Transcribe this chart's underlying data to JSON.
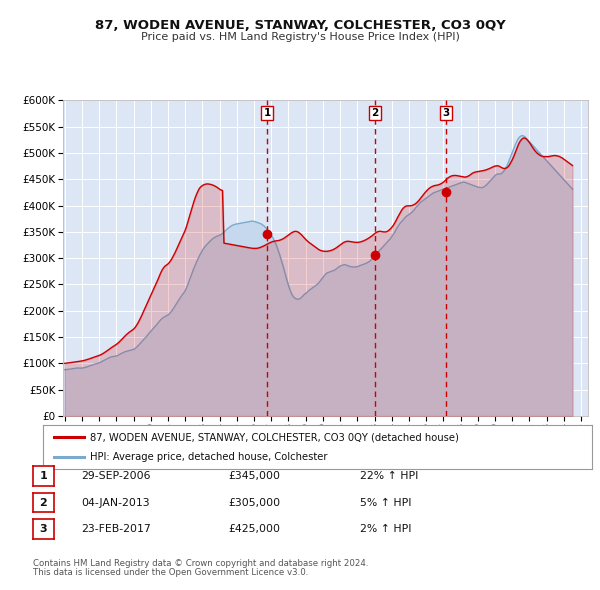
{
  "title": "87, WODEN AVENUE, STANWAY, COLCHESTER, CO3 0QY",
  "subtitle": "Price paid vs. HM Land Registry's House Price Index (HPI)",
  "ylim": [
    0,
    600000
  ],
  "yticks": [
    0,
    50000,
    100000,
    150000,
    200000,
    250000,
    300000,
    350000,
    400000,
    450000,
    500000,
    550000,
    600000
  ],
  "xlim_start": 1994.9,
  "xlim_end": 2025.4,
  "background_color": "#ffffff",
  "plot_bg_color": "#dce6f5",
  "grid_color": "#ffffff",
  "sale_color": "#cc0000",
  "hpi_color": "#7aabcf",
  "hpi_fill_color": "#c5d8ee",
  "sale_fill_color": "#cc0000",
  "sale_label": "87, WODEN AVENUE, STANWAY, COLCHESTER, CO3 0QY (detached house)",
  "hpi_label": "HPI: Average price, detached house, Colchester",
  "transactions": [
    {
      "num": 1,
      "date": 2006.75,
      "price": 345000,
      "label": "29-SEP-2006",
      "price_label": "£345,000",
      "pct": "22%",
      "dir": "↑"
    },
    {
      "num": 2,
      "date": 2013.02,
      "price": 305000,
      "label": "04-JAN-2013",
      "price_label": "£305,000",
      "pct": "5%",
      "dir": "↑"
    },
    {
      "num": 3,
      "date": 2017.15,
      "price": 425000,
      "label": "23-FEB-2017",
      "price_label": "£425,000",
      "pct": "2%",
      "dir": "↑"
    }
  ],
  "footnote1": "Contains HM Land Registry data © Crown copyright and database right 2024.",
  "footnote2": "This data is licensed under the Open Government Licence v3.0.",
  "hpi_data_x": [
    1995.0,
    1995.083,
    1995.167,
    1995.25,
    1995.333,
    1995.417,
    1995.5,
    1995.583,
    1995.667,
    1995.75,
    1995.833,
    1995.917,
    1996.0,
    1996.083,
    1996.167,
    1996.25,
    1996.333,
    1996.417,
    1996.5,
    1996.583,
    1996.667,
    1996.75,
    1996.833,
    1996.917,
    1997.0,
    1997.083,
    1997.167,
    1997.25,
    1997.333,
    1997.417,
    1997.5,
    1997.583,
    1997.667,
    1997.75,
    1997.833,
    1997.917,
    1998.0,
    1998.083,
    1998.167,
    1998.25,
    1998.333,
    1998.417,
    1998.5,
    1998.583,
    1998.667,
    1998.75,
    1998.833,
    1998.917,
    1999.0,
    1999.083,
    1999.167,
    1999.25,
    1999.333,
    1999.417,
    1999.5,
    1999.583,
    1999.667,
    1999.75,
    1999.833,
    1999.917,
    2000.0,
    2000.083,
    2000.167,
    2000.25,
    2000.333,
    2000.417,
    2000.5,
    2000.583,
    2000.667,
    2000.75,
    2000.833,
    2000.917,
    2001.0,
    2001.083,
    2001.167,
    2001.25,
    2001.333,
    2001.417,
    2001.5,
    2001.583,
    2001.667,
    2001.75,
    2001.833,
    2001.917,
    2002.0,
    2002.083,
    2002.167,
    2002.25,
    2002.333,
    2002.417,
    2002.5,
    2002.583,
    2002.667,
    2002.75,
    2002.833,
    2002.917,
    2003.0,
    2003.083,
    2003.167,
    2003.25,
    2003.333,
    2003.417,
    2003.5,
    2003.583,
    2003.667,
    2003.75,
    2003.833,
    2003.917,
    2004.0,
    2004.083,
    2004.167,
    2004.25,
    2004.333,
    2004.417,
    2004.5,
    2004.583,
    2004.667,
    2004.75,
    2004.833,
    2004.917,
    2005.0,
    2005.083,
    2005.167,
    2005.25,
    2005.333,
    2005.417,
    2005.5,
    2005.583,
    2005.667,
    2005.75,
    2005.833,
    2005.917,
    2006.0,
    2006.083,
    2006.167,
    2006.25,
    2006.333,
    2006.417,
    2006.5,
    2006.583,
    2006.667,
    2006.75,
    2006.833,
    2006.917,
    2007.0,
    2007.083,
    2007.167,
    2007.25,
    2007.333,
    2007.417,
    2007.5,
    2007.583,
    2007.667,
    2007.75,
    2007.833,
    2007.917,
    2008.0,
    2008.083,
    2008.167,
    2008.25,
    2008.333,
    2008.417,
    2008.5,
    2008.583,
    2008.667,
    2008.75,
    2008.833,
    2008.917,
    2009.0,
    2009.083,
    2009.167,
    2009.25,
    2009.333,
    2009.417,
    2009.5,
    2009.583,
    2009.667,
    2009.75,
    2009.833,
    2009.917,
    2010.0,
    2010.083,
    2010.167,
    2010.25,
    2010.333,
    2010.417,
    2010.5,
    2010.583,
    2010.667,
    2010.75,
    2010.833,
    2010.917,
    2011.0,
    2011.083,
    2011.167,
    2011.25,
    2011.333,
    2011.417,
    2011.5,
    2011.583,
    2011.667,
    2011.75,
    2011.833,
    2011.917,
    2012.0,
    2012.083,
    2012.167,
    2012.25,
    2012.333,
    2012.417,
    2012.5,
    2012.583,
    2012.667,
    2012.75,
    2012.833,
    2012.917,
    2013.0,
    2013.083,
    2013.167,
    2013.25,
    2013.333,
    2013.417,
    2013.5,
    2013.583,
    2013.667,
    2013.75,
    2013.833,
    2013.917,
    2014.0,
    2014.083,
    2014.167,
    2014.25,
    2014.333,
    2014.417,
    2014.5,
    2014.583,
    2014.667,
    2014.75,
    2014.833,
    2014.917,
    2015.0,
    2015.083,
    2015.167,
    2015.25,
    2015.333,
    2015.417,
    2015.5,
    2015.583,
    2015.667,
    2015.75,
    2015.833,
    2015.917,
    2016.0,
    2016.083,
    2016.167,
    2016.25,
    2016.333,
    2016.417,
    2016.5,
    2016.583,
    2016.667,
    2016.75,
    2016.833,
    2016.917,
    2017.0,
    2017.083,
    2017.167,
    2017.25,
    2017.333,
    2017.417,
    2017.5,
    2017.583,
    2017.667,
    2017.75,
    2017.833,
    2017.917,
    2018.0,
    2018.083,
    2018.167,
    2018.25,
    2018.333,
    2018.417,
    2018.5,
    2018.583,
    2018.667,
    2018.75,
    2018.833,
    2018.917,
    2019.0,
    2019.083,
    2019.167,
    2019.25,
    2019.333,
    2019.417,
    2019.5,
    2019.583,
    2019.667,
    2019.75,
    2019.833,
    2019.917,
    2020.0,
    2020.083,
    2020.167,
    2020.25,
    2020.333,
    2020.417,
    2020.5,
    2020.583,
    2020.667,
    2020.75,
    2020.833,
    2020.917,
    2021.0,
    2021.083,
    2021.167,
    2021.25,
    2021.333,
    2021.417,
    2021.5,
    2021.583,
    2021.667,
    2021.75,
    2021.833,
    2021.917,
    2022.0,
    2022.083,
    2022.167,
    2022.25,
    2022.333,
    2022.417,
    2022.5,
    2022.583,
    2022.667,
    2022.75,
    2022.833,
    2022.917,
    2023.0,
    2023.083,
    2023.167,
    2023.25,
    2023.333,
    2023.417,
    2023.5,
    2023.583,
    2023.667,
    2023.75,
    2023.833,
    2023.917,
    2024.0,
    2024.083,
    2024.167,
    2024.25,
    2024.333,
    2024.417,
    2024.5
  ],
  "hpi_data_y": [
    88000,
    88200,
    88500,
    88800,
    89200,
    89600,
    90100,
    90500,
    91000,
    91200,
    91000,
    90800,
    91000,
    91400,
    92000,
    92800,
    93700,
    94700,
    95700,
    96700,
    97600,
    98500,
    99200,
    100000,
    101000,
    102200,
    103500,
    105000,
    106500,
    108000,
    109500,
    110800,
    111800,
    112500,
    113000,
    113500,
    114000,
    115000,
    116500,
    118000,
    119500,
    121000,
    122000,
    122800,
    123500,
    124200,
    125000,
    125800,
    126500,
    128000,
    130500,
    133000,
    136000,
    139000,
    142000,
    145000,
    148000,
    151000,
    154500,
    158000,
    161000,
    164000,
    167000,
    170000,
    173000,
    176500,
    180000,
    183000,
    185500,
    187500,
    189000,
    190500,
    192000,
    194500,
    197500,
    201000,
    205000,
    209500,
    214000,
    218500,
    222500,
    226500,
    230500,
    234000,
    238000,
    244000,
    251000,
    258500,
    266000,
    273500,
    280500,
    287000,
    293000,
    299000,
    305000,
    310000,
    315000,
    319000,
    322500,
    325500,
    328500,
    331500,
    334000,
    336500,
    338500,
    340000,
    341500,
    342500,
    343500,
    345000,
    347000,
    349500,
    352000,
    354500,
    357000,
    359000,
    361000,
    362500,
    363500,
    364500,
    365000,
    365500,
    366000,
    366500,
    367000,
    367500,
    368000,
    368500,
    369000,
    369500,
    370000,
    370200,
    370000,
    369000,
    368000,
    367000,
    366000,
    365000,
    363000,
    361000,
    358000,
    355000,
    351000,
    347000,
    343000,
    339000,
    334000,
    328000,
    321000,
    313000,
    305000,
    296000,
    287000,
    277000,
    267000,
    257000,
    248000,
    240000,
    233000,
    228000,
    225000,
    223000,
    222000,
    222000,
    223000,
    225000,
    228000,
    231000,
    233000,
    235000,
    238000,
    240000,
    242000,
    244000,
    246000,
    248000,
    250000,
    253000,
    256000,
    260000,
    263000,
    267000,
    270000,
    272000,
    273000,
    274000,
    275000,
    276000,
    277000,
    279000,
    281000,
    283000,
    285000,
    286000,
    287000,
    287500,
    287000,
    286000,
    285000,
    284000,
    283500,
    283000,
    283000,
    283500,
    284000,
    285000,
    286000,
    287000,
    288000,
    289000,
    290000,
    291500,
    293000,
    295000,
    298000,
    301000,
    304000,
    307000,
    310000,
    313000,
    316000,
    319000,
    322000,
    325000,
    328000,
    331000,
    334000,
    337000,
    341000,
    345000,
    349000,
    354000,
    359000,
    363000,
    367000,
    370000,
    373000,
    376000,
    379000,
    381000,
    383000,
    385000,
    387000,
    390000,
    393000,
    397000,
    400000,
    403000,
    406000,
    408000,
    410000,
    412000,
    414000,
    416000,
    418000,
    420000,
    422000,
    424000,
    425000,
    426000,
    427000,
    428000,
    429000,
    430000,
    431000,
    432000,
    433000,
    434000,
    435000,
    436000,
    437000,
    438000,
    439000,
    440000,
    441000,
    442000,
    443000,
    444000,
    444500,
    444000,
    443000,
    442000,
    441000,
    440000,
    439000,
    438000,
    437000,
    436000,
    435000,
    434500,
    434000,
    434000,
    435000,
    437000,
    439000,
    442000,
    445000,
    448000,
    451000,
    454000,
    457000,
    459000,
    460000,
    460000,
    460000,
    462000,
    465000,
    469000,
    474000,
    480000,
    487000,
    494000,
    501000,
    508000,
    515000,
    521000,
    526000,
    530000,
    532000,
    533000,
    532000,
    530000,
    527000,
    524000,
    521000,
    518000,
    515000,
    512000,
    509000,
    506000,
    503000,
    500000,
    497000,
    494000,
    491000,
    488000,
    485000,
    482000,
    479000,
    476000,
    473000,
    470000,
    467000,
    464000,
    461000,
    458000,
    455000,
    452000,
    449000,
    446000,
    443000,
    440000,
    437000,
    434000,
    431000
  ],
  "sale_data_x": [
    1995.0,
    1995.083,
    1995.167,
    1995.25,
    1995.333,
    1995.417,
    1995.5,
    1995.583,
    1995.667,
    1995.75,
    1995.833,
    1995.917,
    1996.0,
    1996.083,
    1996.167,
    1996.25,
    1996.333,
    1996.417,
    1996.5,
    1996.583,
    1996.667,
    1996.75,
    1996.833,
    1996.917,
    1997.0,
    1997.083,
    1997.167,
    1997.25,
    1997.333,
    1997.417,
    1997.5,
    1997.583,
    1997.667,
    1997.75,
    1997.833,
    1997.917,
    1998.0,
    1998.083,
    1998.167,
    1998.25,
    1998.333,
    1998.417,
    1998.5,
    1998.583,
    1998.667,
    1998.75,
    1998.833,
    1998.917,
    1999.0,
    1999.083,
    1999.167,
    1999.25,
    1999.333,
    1999.417,
    1999.5,
    1999.583,
    1999.667,
    1999.75,
    1999.833,
    1999.917,
    2000.0,
    2000.083,
    2000.167,
    2000.25,
    2000.333,
    2000.417,
    2000.5,
    2000.583,
    2000.667,
    2000.75,
    2000.833,
    2000.917,
    2001.0,
    2001.083,
    2001.167,
    2001.25,
    2001.333,
    2001.417,
    2001.5,
    2001.583,
    2001.667,
    2001.75,
    2001.833,
    2001.917,
    2002.0,
    2002.083,
    2002.167,
    2002.25,
    2002.333,
    2002.417,
    2002.5,
    2002.583,
    2002.667,
    2002.75,
    2002.833,
    2002.917,
    2003.0,
    2003.083,
    2003.167,
    2003.25,
    2003.333,
    2003.417,
    2003.5,
    2003.583,
    2003.667,
    2003.75,
    2003.833,
    2003.917,
    2004.0,
    2004.083,
    2004.167,
    2004.25,
    2004.333,
    2004.417,
    2004.5,
    2004.583,
    2004.667,
    2004.75,
    2004.833,
    2004.917,
    2005.0,
    2005.083,
    2005.167,
    2005.25,
    2005.333,
    2005.417,
    2005.5,
    2005.583,
    2005.667,
    2005.75,
    2005.833,
    2005.917,
    2006.0,
    2006.083,
    2006.167,
    2006.25,
    2006.333,
    2006.417,
    2006.5,
    2006.583,
    2006.667,
    2006.75,
    2006.833,
    2006.917,
    2007.0,
    2007.083,
    2007.167,
    2007.25,
    2007.333,
    2007.417,
    2007.5,
    2007.583,
    2007.667,
    2007.75,
    2007.833,
    2007.917,
    2008.0,
    2008.083,
    2008.167,
    2008.25,
    2008.333,
    2008.417,
    2008.5,
    2008.583,
    2008.667,
    2008.75,
    2008.833,
    2008.917,
    2009.0,
    2009.083,
    2009.167,
    2009.25,
    2009.333,
    2009.417,
    2009.5,
    2009.583,
    2009.667,
    2009.75,
    2009.833,
    2009.917,
    2010.0,
    2010.083,
    2010.167,
    2010.25,
    2010.333,
    2010.417,
    2010.5,
    2010.583,
    2010.667,
    2010.75,
    2010.833,
    2010.917,
    2011.0,
    2011.083,
    2011.167,
    2011.25,
    2011.333,
    2011.417,
    2011.5,
    2011.583,
    2011.667,
    2011.75,
    2011.833,
    2011.917,
    2012.0,
    2012.083,
    2012.167,
    2012.25,
    2012.333,
    2012.417,
    2012.5,
    2012.583,
    2012.667,
    2012.75,
    2012.833,
    2012.917,
    2013.0,
    2013.083,
    2013.167,
    2013.25,
    2013.333,
    2013.417,
    2013.5,
    2013.583,
    2013.667,
    2013.75,
    2013.833,
    2013.917,
    2014.0,
    2014.083,
    2014.167,
    2014.25,
    2014.333,
    2014.417,
    2014.5,
    2014.583,
    2014.667,
    2014.75,
    2014.833,
    2014.917,
    2015.0,
    2015.083,
    2015.167,
    2015.25,
    2015.333,
    2015.417,
    2015.5,
    2015.583,
    2015.667,
    2015.75,
    2015.833,
    2015.917,
    2016.0,
    2016.083,
    2016.167,
    2016.25,
    2016.333,
    2016.417,
    2016.5,
    2016.583,
    2016.667,
    2016.75,
    2016.833,
    2016.917,
    2017.0,
    2017.083,
    2017.167,
    2017.25,
    2017.333,
    2017.417,
    2017.5,
    2017.583,
    2017.667,
    2017.75,
    2017.833,
    2017.917,
    2018.0,
    2018.083,
    2018.167,
    2018.25,
    2018.333,
    2018.417,
    2018.5,
    2018.583,
    2018.667,
    2018.75,
    2018.833,
    2018.917,
    2019.0,
    2019.083,
    2019.167,
    2019.25,
    2019.333,
    2019.417,
    2019.5,
    2019.583,
    2019.667,
    2019.75,
    2019.833,
    2019.917,
    2020.0,
    2020.083,
    2020.167,
    2020.25,
    2020.333,
    2020.417,
    2020.5,
    2020.583,
    2020.667,
    2020.75,
    2020.833,
    2020.917,
    2021.0,
    2021.083,
    2021.167,
    2021.25,
    2021.333,
    2021.417,
    2021.5,
    2021.583,
    2021.667,
    2021.75,
    2021.833,
    2021.917,
    2022.0,
    2022.083,
    2022.167,
    2022.25,
    2022.333,
    2022.417,
    2022.5,
    2022.583,
    2022.667,
    2022.75,
    2022.833,
    2022.917,
    2023.0,
    2023.083,
    2023.167,
    2023.25,
    2023.333,
    2023.417,
    2023.5,
    2023.583,
    2023.667,
    2023.75,
    2023.833,
    2023.917,
    2024.0,
    2024.083,
    2024.167,
    2024.25,
    2024.333,
    2024.417,
    2024.5
  ],
  "sale_data_y": [
    100000,
    100300,
    100600,
    101000,
    101400,
    101800,
    102300,
    102700,
    103100,
    103500,
    103800,
    104200,
    104600,
    105200,
    105900,
    106700,
    107500,
    108400,
    109400,
    110400,
    111400,
    112400,
    113300,
    114200,
    115000,
    116200,
    117600,
    119200,
    121000,
    122800,
    124800,
    126800,
    128800,
    130700,
    132500,
    134200,
    136000,
    138200,
    140600,
    143300,
    146200,
    149100,
    152000,
    154600,
    157000,
    159200,
    161200,
    163100,
    165000,
    168000,
    172000,
    176500,
    181500,
    187000,
    193000,
    199000,
    205000,
    211000,
    217000,
    223000,
    229000,
    235000,
    241000,
    247000,
    253000,
    259500,
    266000,
    272500,
    278000,
    282000,
    285000,
    287000,
    289000,
    292000,
    296000,
    300500,
    305500,
    311000,
    317000,
    323000,
    329000,
    335000,
    341000,
    347000,
    353000,
    361000,
    370000,
    379500,
    389000,
    398000,
    407000,
    415000,
    422000,
    428000,
    433000,
    436000,
    438000,
    439500,
    440500,
    441000,
    441000,
    440500,
    440000,
    439000,
    438000,
    436500,
    435000,
    433000,
    431000,
    429500,
    428500,
    328500,
    328000,
    327500,
    327000,
    326500,
    326000,
    325500,
    325000,
    324500,
    324000,
    323500,
    323000,
    322500,
    322000,
    321500,
    321000,
    320500,
    320000,
    319500,
    319000,
    318700,
    318500,
    318500,
    318700,
    319200,
    320000,
    321000,
    322200,
    323500,
    325000,
    326500,
    328000,
    329300,
    330500,
    331500,
    332200,
    332700,
    333000,
    333500,
    334200,
    335200,
    336500,
    338000,
    340000,
    342000,
    344000,
    346000,
    348000,
    349500,
    350500,
    351000,
    350500,
    349000,
    347000,
    344500,
    341500,
    338500,
    335500,
    333000,
    330500,
    328500,
    326500,
    324500,
    322500,
    320500,
    318500,
    316500,
    315000,
    314000,
    313500,
    313000,
    313000,
    313000,
    313500,
    314000,
    315000,
    316000,
    317500,
    319000,
    321000,
    323000,
    325000,
    327000,
    329000,
    330500,
    331500,
    332000,
    332000,
    331500,
    331000,
    330500,
    330200,
    330000,
    330000,
    330200,
    330700,
    331500,
    332500,
    333700,
    335000,
    336500,
    338200,
    340000,
    342000,
    344200,
    346500,
    348500,
    350000,
    350800,
    351000,
    350500,
    350000,
    349800,
    350000,
    351000,
    353000,
    355500,
    358500,
    362000,
    366500,
    371500,
    377000,
    382000,
    387000,
    391500,
    395000,
    397500,
    399000,
    399500,
    399500,
    399500,
    400000,
    401000,
    402500,
    404500,
    407000,
    410000,
    413500,
    417000,
    420500,
    424000,
    427000,
    430000,
    432500,
    434500,
    436000,
    437200,
    438000,
    438500,
    439000,
    439800,
    441000,
    442500,
    444500,
    447000,
    449500,
    452000,
    454000,
    455500,
    456500,
    457000,
    457200,
    457000,
    456500,
    456000,
    455500,
    455000,
    454500,
    454000,
    454500,
    455500,
    457000,
    459000,
    461000,
    462500,
    463500,
    464000,
    464500,
    465000,
    465500,
    466000,
    466500,
    467200,
    468000,
    469000,
    470200,
    471500,
    472800,
    474000,
    475000,
    475500,
    475500,
    474500,
    473000,
    471500,
    470500,
    470500,
    471500,
    473500,
    477000,
    482000,
    487000,
    493000,
    500000,
    507000,
    514000,
    520000,
    524000,
    527000,
    528500,
    528000,
    526000,
    523000,
    519500,
    515500,
    511000,
    507000,
    503500,
    500500,
    498000,
    496000,
    494500,
    493500,
    493000,
    493000,
    493000,
    493000,
    493500,
    494000,
    494500,
    495000,
    495000,
    494500,
    494000,
    493000,
    491500,
    490000,
    488000,
    486000,
    484000,
    482000,
    480000,
    478000,
    476000
  ]
}
